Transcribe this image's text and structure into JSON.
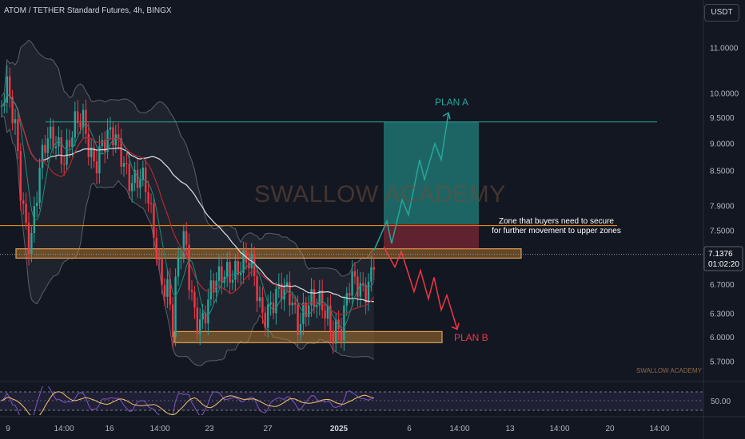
{
  "header": {
    "title": "ATOM / TETHER Standard Futures, 4h, BINGX",
    "currency_button": "USDT"
  },
  "colors": {
    "background": "#131722",
    "bull": "#26a69a",
    "bear": "#f23645",
    "zone": "#c8842e",
    "resistance": "#ff9800",
    "target_line": "#26a69a"
  },
  "chart_data": {
    "type": "candlestick",
    "symbol": "ATOM / TETHER Standard Futures",
    "timeframe": "4h",
    "exchange": "BINGX",
    "y_axis": {
      "scale": "log",
      "ticks": [
        11.0,
        10.0,
        9.5,
        9.0,
        8.5,
        7.9,
        7.5,
        6.7,
        6.3,
        6.0,
        5.7
      ],
      "tick_labels": [
        "11.0000",
        "10.0000",
        "9.5000",
        "9.0000",
        "8.5000",
        "7.9000",
        "7.5000",
        "6.7000",
        "6.3000",
        "6.0000",
        "5.7000"
      ]
    },
    "x_axis": {
      "tick_labels": [
        "9",
        "14:00",
        "16",
        "14:00",
        "23",
        "27",
        "2025",
        "6",
        "14:00",
        "13",
        "14:00",
        "20",
        "14:00"
      ]
    },
    "last_price": {
      "value": 7.1376,
      "label": "7.1376",
      "countdown": "01:02:20"
    },
    "indicators": {
      "rsi_panel": {
        "tick_label": "50.00",
        "levels": [
          30,
          50,
          70
        ]
      },
      "moving_averages": [
        "EMA fast",
        "EMA slow",
        "SMA 200",
        "Bollinger Bands"
      ]
    },
    "zones": [
      {
        "name": "resistance-zone",
        "price_low": 7.08,
        "price_high": 7.22
      },
      {
        "name": "support-zone",
        "price_low": 5.93,
        "price_high": 6.07
      }
    ],
    "lines": [
      {
        "name": "range-high",
        "price": 9.42
      },
      {
        "name": "resistance-line",
        "price": 7.58
      }
    ],
    "annotations": {
      "plan_a": "PLAN A",
      "plan_b": "PLAN B",
      "zone_note_line1": "Zone that buyers need to secure",
      "zone_note_line2": "for further movement to upper zones",
      "watermark": "SWALLOW ACADEMY",
      "watermark_small": "SWALLOW ACADEMY"
    },
    "targets": {
      "plan_a_target": 9.6,
      "plan_b_target": 6.1
    }
  }
}
